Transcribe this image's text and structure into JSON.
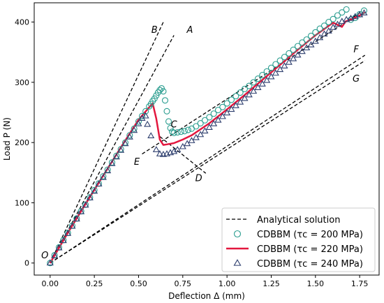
{
  "chart_data": {
    "type": "line",
    "xlabel": "Deflection Δ (mm)",
    "ylabel": "Load P (N)",
    "xlim": [
      -0.09,
      1.86
    ],
    "ylim": [
      -20,
      432
    ],
    "x_ticks": [
      "0.00",
      "0.25",
      "0.50",
      "0.75",
      "1.00",
      "1.25",
      "1.50",
      "1.75"
    ],
    "x_tick_values": [
      0,
      0.25,
      0.5,
      0.75,
      1.0,
      1.25,
      1.5,
      1.75
    ],
    "y_ticks": [
      "0",
      "100",
      "200",
      "300",
      "400"
    ],
    "y_tick_values": [
      0,
      100,
      200,
      300,
      400
    ],
    "legend_position": "lower right",
    "colors": {
      "analytical": "#000000",
      "tau200": "#2a9d8f",
      "tau220": "#e3173e",
      "tau240": "#2e3f6e"
    },
    "analytical_lines": [
      {
        "label": "A",
        "x": [
          0,
          0.7
        ],
        "y": [
          0,
          378
        ]
      },
      {
        "label": "B",
        "x": [
          0,
          0.64
        ],
        "y": [
          0,
          400
        ]
      },
      {
        "label": "F",
        "x": [
          0,
          1.78
        ],
        "y": [
          0,
          345
        ]
      },
      {
        "label": "G",
        "x": [
          0,
          1.78
        ],
        "y": [
          0,
          336
        ]
      },
      {
        "label": "C",
        "x": [
          0.52,
          1.75
        ],
        "y": [
          181,
          415
        ]
      },
      {
        "label": "D",
        "x": [
          0.62,
          0.88
        ],
        "y": [
          210,
          149
        ]
      }
    ],
    "point_labels": [
      {
        "text": "O",
        "x": -0.03,
        "y": 8
      },
      {
        "text": "A",
        "x": 0.79,
        "y": 382
      },
      {
        "text": "B",
        "x": 0.59,
        "y": 382
      },
      {
        "text": "C",
        "x": 0.7,
        "y": 225
      },
      {
        "text": "D",
        "x": 0.84,
        "y": 136
      },
      {
        "text": "E",
        "x": 0.49,
        "y": 163
      },
      {
        "text": "F",
        "x": 1.73,
        "y": 350
      },
      {
        "text": "G",
        "x": 1.73,
        "y": 301
      }
    ],
    "series": [
      {
        "name": "Analytical solution",
        "marker": "dashed-line"
      },
      {
        "name": "CDBBM (τc = 200 MPa)",
        "marker": "circle",
        "x": [
          0,
          0.025,
          0.05,
          0.075,
          0.1,
          0.125,
          0.15,
          0.175,
          0.2,
          0.225,
          0.25,
          0.275,
          0.3,
          0.325,
          0.35,
          0.375,
          0.4,
          0.425,
          0.45,
          0.475,
          0.5,
          0.52,
          0.54,
          0.56,
          0.57,
          0.58,
          0.59,
          0.6,
          0.61,
          0.62,
          0.63,
          0.64,
          0.65,
          0.66,
          0.67,
          0.68,
          0.69,
          0.7,
          0.72,
          0.74,
          0.76,
          0.78,
          0.8,
          0.825,
          0.85,
          0.875,
          0.9,
          0.925,
          0.95,
          0.975,
          1.0,
          1.025,
          1.05,
          1.075,
          1.1,
          1.125,
          1.15,
          1.175,
          1.2,
          1.225,
          1.25,
          1.275,
          1.3,
          1.325,
          1.35,
          1.375,
          1.4,
          1.425,
          1.45,
          1.475,
          1.5,
          1.525,
          1.55,
          1.575,
          1.6,
          1.625,
          1.65,
          1.675,
          1.7,
          1.725,
          1.75,
          1.775
        ],
        "y": [
          0,
          13,
          26,
          38,
          50,
          62,
          74,
          86,
          97,
          109,
          121,
          132,
          144,
          155,
          167,
          178,
          189,
          200,
          212,
          223,
          235,
          244,
          252,
          260,
          264,
          269,
          273,
          278,
          283,
          287,
          290,
          285,
          270,
          252,
          235,
          224,
          218,
          216,
          217,
          218,
          219,
          221,
          223,
          227,
          232,
          237,
          242,
          248,
          254,
          259,
          265,
          271,
          277,
          283,
          289,
          294,
          300,
          306,
          312,
          318,
          324,
          330,
          336,
          342,
          348,
          354,
          360,
          366,
          371,
          377,
          383,
          389,
          394,
          400,
          405,
          411,
          416,
          421,
          404,
          407,
          413,
          419
        ]
      },
      {
        "name": "CDBBM (τc = 220 MPa)",
        "marker": "solid-line",
        "x": [
          0,
          0.1,
          0.2,
          0.3,
          0.4,
          0.5,
          0.55,
          0.58,
          0.6,
          0.62,
          0.64,
          0.66,
          0.7,
          0.75,
          0.8,
          0.9,
          1.0,
          1.1,
          1.2,
          1.3,
          1.4,
          1.5,
          1.6,
          1.65,
          1.67,
          1.7,
          1.75,
          1.78
        ],
        "y": [
          0,
          50,
          98,
          145,
          192,
          238,
          255,
          265,
          240,
          205,
          196,
          197,
          199,
          205,
          212,
          232,
          255,
          279,
          304,
          329,
          354,
          378,
          399,
          392,
          401,
          404,
          411,
          416
        ]
      },
      {
        "name": "CDBBM (τc = 240 MPa)",
        "marker": "triangle",
        "x": [
          0,
          0.025,
          0.05,
          0.075,
          0.1,
          0.125,
          0.15,
          0.175,
          0.2,
          0.225,
          0.25,
          0.275,
          0.3,
          0.325,
          0.35,
          0.375,
          0.4,
          0.425,
          0.45,
          0.475,
          0.5,
          0.52,
          0.54,
          0.55,
          0.57,
          0.6,
          0.62,
          0.64,
          0.66,
          0.68,
          0.7,
          0.72,
          0.75,
          0.775,
          0.8,
          0.825,
          0.85,
          0.875,
          0.9,
          0.925,
          0.95,
          0.975,
          1.0,
          1.025,
          1.05,
          1.075,
          1.1,
          1.125,
          1.15,
          1.175,
          1.2,
          1.225,
          1.25,
          1.275,
          1.3,
          1.325,
          1.35,
          1.375,
          1.4,
          1.425,
          1.45,
          1.475,
          1.5,
          1.525,
          1.55,
          1.575,
          1.6,
          1.625,
          1.65,
          1.675,
          1.7,
          1.725,
          1.75,
          1.775
        ],
        "y": [
          0,
          12,
          25,
          37,
          49,
          61,
          73,
          85,
          96,
          108,
          119,
          131,
          142,
          153,
          165,
          176,
          187,
          198,
          209,
          220,
          231,
          240,
          244,
          230,
          211,
          188,
          181,
          180,
          181,
          183,
          185,
          188,
          193,
          198,
          203,
          208,
          213,
          219,
          225,
          231,
          237,
          243,
          249,
          255,
          261,
          267,
          273,
          279,
          285,
          291,
          297,
          303,
          309,
          315,
          321,
          327,
          333,
          339,
          345,
          351,
          357,
          362,
          368,
          374,
          380,
          385,
          391,
          396,
          401,
          404,
          406,
          409,
          412,
          415
        ]
      }
    ]
  }
}
